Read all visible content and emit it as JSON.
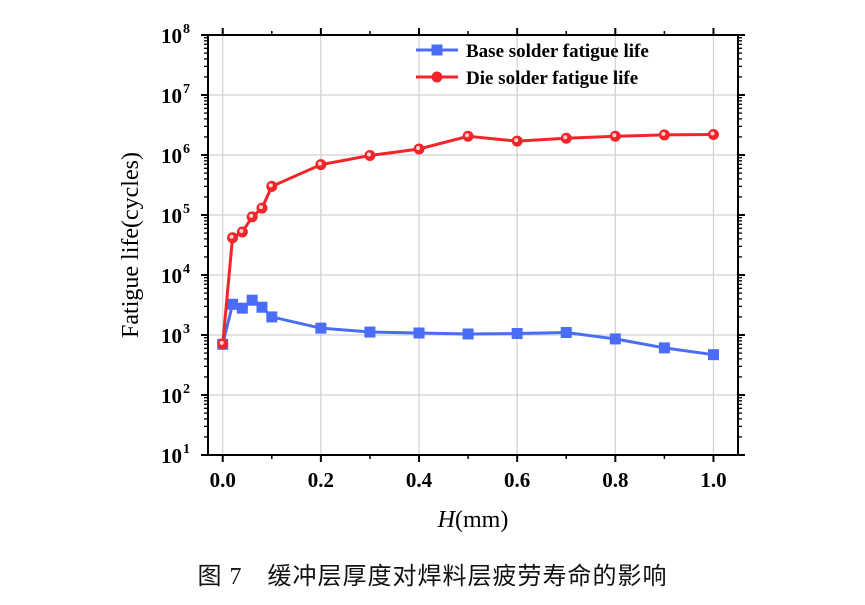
{
  "chart_data": {
    "type": "line",
    "xlabel_italic": "H",
    "xlabel_rest": "(mm)",
    "ylabel": "Fatigue life(cycles)",
    "yscale": "log",
    "xlim": [
      -0.03,
      1.05
    ],
    "ylim": [
      10,
      100000000
    ],
    "x_ticks": [
      "0.0",
      "0.2",
      "0.4",
      "0.6",
      "0.8",
      "1.0"
    ],
    "y_tick_exponents": [
      "1",
      "2",
      "3",
      "4",
      "5",
      "6",
      "7",
      "8"
    ],
    "grid": true,
    "legend_position": "top-right",
    "x": [
      0,
      0.02,
      0.04,
      0.06,
      0.08,
      0.1,
      0.2,
      0.3,
      0.4,
      0.5,
      0.6,
      0.7,
      0.8,
      0.9,
      1.0
    ],
    "series": [
      {
        "name": "Base solder fatigue life",
        "color": "#4a6cf7",
        "marker": "square",
        "values": [
          700,
          3250,
          2800,
          3800,
          2900,
          2000,
          1300,
          1120,
          1080,
          1040,
          1060,
          1100,
          860,
          610,
          470
        ]
      },
      {
        "name": "Die solder fatigue life",
        "color": "#f0262a",
        "marker": "circle",
        "values": [
          710,
          41700,
          52000,
          93000,
          130000,
          300000,
          690000,
          980000,
          1260000,
          2050000,
          1700000,
          1900000,
          2050000,
          2160000,
          2200000
        ]
      }
    ]
  },
  "caption": "图 7　缓冲层厚度对焊料层疲劳寿命的影响"
}
